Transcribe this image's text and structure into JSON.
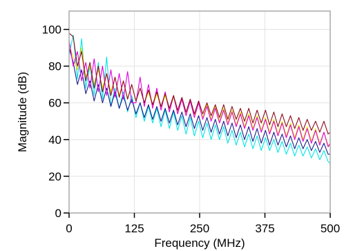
{
  "chart_data": {
    "type": "line",
    "title": "",
    "xlabel": "Frequency (MHz)",
    "ylabel": "Magnitude (dB)",
    "xlim": [
      0,
      500
    ],
    "ylim": [
      0,
      110
    ],
    "x_ticks": [
      0,
      125,
      250,
      375,
      500
    ],
    "y_ticks": [
      0,
      20,
      40,
      60,
      80,
      100
    ],
    "grid": true,
    "legend": "none",
    "series": [
      {
        "color": "#00e5e5",
        "x": [
          0,
          8,
          16,
          24,
          32,
          40,
          48,
          56,
          64,
          72,
          80,
          88,
          96,
          104,
          112,
          120,
          128,
          136,
          144,
          152,
          160,
          168,
          176,
          184,
          192,
          200,
          208,
          216,
          224,
          232,
          240,
          248,
          256,
          264,
          272,
          280,
          288,
          296,
          304,
          312,
          320,
          328,
          336,
          344,
          352,
          360,
          368,
          376,
          384,
          392,
          400,
          408,
          416,
          424,
          432,
          440,
          448,
          456,
          464,
          472,
          480,
          488,
          496,
          500
        ],
        "y": [
          86,
          97,
          73,
          95,
          68,
          80,
          64,
          82,
          62,
          85,
          58,
          68,
          57,
          66,
          55,
          64,
          52,
          60,
          50,
          58,
          49,
          57,
          47,
          56,
          46,
          55,
          45,
          53,
          43,
          52,
          42,
          50,
          41,
          49,
          40,
          48,
          40,
          47,
          38,
          45,
          37,
          44,
          36,
          43,
          35,
          42,
          34,
          41,
          34,
          40,
          33,
          39,
          32,
          38,
          31,
          37,
          31,
          36,
          30,
          35,
          29,
          34,
          28,
          27
        ]
      },
      {
        "color": "#1a1a8c",
        "x": [
          0,
          8,
          16,
          24,
          32,
          40,
          48,
          56,
          64,
          72,
          80,
          88,
          96,
          104,
          112,
          120,
          128,
          136,
          144,
          152,
          160,
          168,
          176,
          184,
          192,
          200,
          208,
          216,
          224,
          232,
          240,
          248,
          256,
          264,
          272,
          280,
          288,
          296,
          304,
          312,
          320,
          328,
          336,
          344,
          352,
          360,
          368,
          376,
          384,
          392,
          400,
          408,
          416,
          424,
          432,
          440,
          448,
          456,
          464,
          472,
          480,
          488,
          496,
          500
        ],
        "y": [
          90,
          82,
          70,
          78,
          65,
          72,
          61,
          70,
          60,
          68,
          58,
          66,
          57,
          64,
          56,
          62,
          54,
          60,
          52,
          59,
          51,
          58,
          50,
          57,
          49,
          56,
          48,
          55,
          47,
          54,
          46,
          53,
          45,
          52,
          44,
          51,
          43,
          50,
          42,
          49,
          41,
          48,
          40,
          47,
          39,
          46,
          38,
          45,
          37,
          44,
          37,
          43,
          36,
          42,
          35,
          41,
          35,
          40,
          34,
          39,
          33,
          38,
          32,
          32
        ]
      },
      {
        "color": "#e8e800",
        "x": [
          0,
          8,
          16,
          24,
          32,
          40,
          48,
          56,
          64,
          72,
          80,
          88,
          96,
          104,
          112,
          120,
          128,
          136,
          144,
          152,
          160,
          168,
          176,
          184,
          192,
          200,
          208,
          216,
          224,
          232,
          240,
          248,
          256,
          264,
          272,
          280,
          288,
          296,
          304,
          312,
          320,
          328,
          336,
          344,
          352,
          360,
          368,
          376,
          384,
          392,
          400,
          408,
          416,
          424,
          432,
          440,
          448,
          456,
          464,
          472,
          480,
          488,
          496,
          500
        ],
        "y": [
          92,
          85,
          78,
          90,
          74,
          80,
          70,
          78,
          68,
          76,
          66,
          74,
          64,
          72,
          62,
          70,
          61,
          68,
          60,
          66,
          58,
          65,
          57,
          64,
          56,
          63,
          55,
          62,
          54,
          61,
          53,
          60,
          52,
          59,
          51,
          58,
          50,
          57,
          49,
          56,
          48,
          55,
          47,
          54,
          46,
          53,
          45,
          52,
          44,
          51,
          43,
          50,
          42,
          49,
          41,
          48,
          40,
          47,
          39,
          46,
          38,
          44,
          37,
          36
        ]
      },
      {
        "color": "#e000e0",
        "x": [
          0,
          8,
          16,
          24,
          32,
          40,
          48,
          56,
          64,
          72,
          80,
          88,
          96,
          104,
          112,
          120,
          128,
          136,
          144,
          152,
          160,
          168,
          176,
          184,
          192,
          200,
          208,
          216,
          224,
          232,
          240,
          248,
          256,
          264,
          272,
          280,
          288,
          296,
          304,
          312,
          320,
          328,
          336,
          344,
          352,
          360,
          368,
          376,
          384,
          392,
          400,
          408,
          416,
          424,
          432,
          440,
          448,
          456,
          464,
          472,
          480,
          488,
          496,
          500
        ],
        "y": [
          94,
          80,
          88,
          72,
          82,
          68,
          84,
          66,
          80,
          64,
          78,
          63,
          76,
          62,
          77,
          60,
          60,
          74,
          58,
          70,
          57,
          68,
          56,
          66,
          55,
          64,
          54,
          62,
          53,
          61,
          52,
          60,
          51,
          58,
          50,
          57,
          49,
          56,
          48,
          55,
          47,
          54,
          46,
          53,
          45,
          52,
          44,
          51,
          43,
          50,
          42,
          49,
          41,
          48,
          40,
          47,
          39,
          46,
          38,
          45,
          37,
          44,
          36,
          38
        ]
      },
      {
        "color": "#8b0a1a",
        "x": [
          0,
          8,
          16,
          24,
          32,
          40,
          48,
          56,
          64,
          72,
          80,
          88,
          96,
          104,
          112,
          120,
          128,
          136,
          144,
          152,
          160,
          168,
          176,
          184,
          192,
          200,
          208,
          216,
          224,
          232,
          240,
          248,
          256,
          264,
          272,
          280,
          288,
          296,
          304,
          312,
          320,
          328,
          336,
          344,
          352,
          360,
          368,
          376,
          384,
          392,
          400,
          408,
          416,
          424,
          432,
          440,
          448,
          456,
          464,
          472,
          480,
          488,
          496,
          500
        ],
        "y": [
          98,
          96,
          80,
          88,
          72,
          82,
          68,
          80,
          66,
          76,
          64,
          74,
          63,
          72,
          62,
          70,
          61,
          68,
          60,
          67,
          59,
          66,
          58,
          65,
          57,
          64,
          56,
          63,
          55,
          62,
          54,
          61,
          54,
          60,
          53,
          59,
          52,
          59,
          51,
          58,
          51,
          57,
          50,
          57,
          49,
          56,
          49,
          56,
          48,
          55,
          47,
          54,
          47,
          53,
          46,
          52,
          45,
          51,
          45,
          50,
          44,
          50,
          43,
          44
        ]
      }
    ]
  }
}
